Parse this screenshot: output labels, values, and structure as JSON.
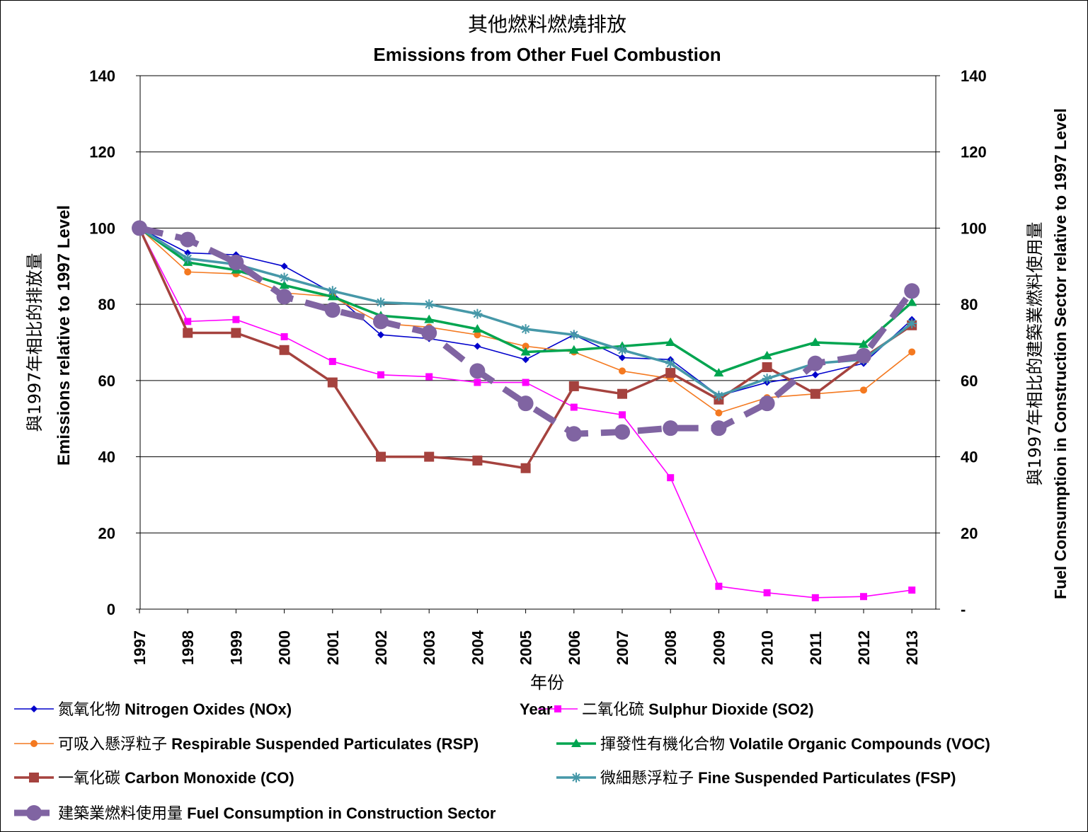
{
  "chart_data": {
    "type": "line",
    "title_cn": "其他燃料燃燒排放",
    "title_en": "Emissions from Other Fuel Combustion",
    "xlabel": "年份",
    "xlabel_en": "Year",
    "ylabel_left_cn": "與1997年相比的排放量",
    "ylabel_left_en": "Emissions relative to 1997 Level",
    "ylabel_right_cn": "與1997年相比的建築業燃料使用量",
    "ylabel_right_en": "Fuel Consumption in Construction Sector relative to 1997 Level",
    "ylim": [
      0,
      140
    ],
    "yticks_left": [
      "0",
      "20",
      "40",
      "60",
      "80",
      "100",
      "120",
      "140"
    ],
    "yticks_right": [
      "-",
      "20",
      "40",
      "60",
      "80",
      "100",
      "120",
      "140"
    ],
    "categories": [
      "1997",
      "1998",
      "1999",
      "2000",
      "2001",
      "2002",
      "2003",
      "2004",
      "2005",
      "2006",
      "2007",
      "2008",
      "2009",
      "2010",
      "2011",
      "2012",
      "2013"
    ],
    "series": [
      {
        "name_cn": "氮氧化物",
        "name_en": "Nitrogen Oxides (NOx)",
        "color": "#0000CC",
        "marker": "diamond",
        "values": [
          100,
          93.5,
          93,
          90,
          83,
          72,
          71,
          69,
          65.5,
          72,
          66,
          65.5,
          56,
          59.5,
          61.5,
          64.5,
          76
        ]
      },
      {
        "name_cn": "二氧化硫",
        "name_en": "Sulphur Dioxide (SO2)",
        "color": "#FF00FF",
        "marker": "square",
        "values": [
          100,
          75.5,
          76,
          71.5,
          65,
          61.5,
          61,
          59.5,
          59.5,
          53,
          51,
          34.5,
          6,
          4.3,
          3,
          3.3,
          5
        ]
      },
      {
        "name_cn": "可吸入懸浮粒子",
        "name_en": "Respirable Suspended Particulates (RSP)",
        "color": "#F47920",
        "marker": "circle",
        "values": [
          100,
          88.5,
          88,
          83,
          82,
          75,
          74,
          72,
          69,
          67.5,
          62.5,
          60.5,
          51.5,
          55.5,
          56.5,
          57.5,
          67.5
        ]
      },
      {
        "name_cn": "揮發性有機化合物",
        "name_en": "Volatile Organic Compounds (VOC)",
        "color": "#00A550",
        "marker": "triangle",
        "values": [
          100,
          91,
          89,
          85,
          82,
          77,
          76,
          73.5,
          67.5,
          68,
          69,
          70,
          62,
          66.5,
          70,
          69.5,
          80.5
        ]
      },
      {
        "name_cn": "一氧化碳",
        "name_en": "Carbon Monoxide (CO)",
        "color": "#A5423E",
        "marker": "bigsquare",
        "values": [
          100,
          72.5,
          72.5,
          68,
          59.5,
          40,
          40,
          39,
          37,
          58.5,
          56.5,
          62,
          55,
          63.5,
          56.5,
          66,
          74.5
        ]
      },
      {
        "name_cn": "微細懸浮粒子",
        "name_en": "Fine Suspended Particulates (FSP)",
        "color": "#4698A8",
        "marker": "star",
        "values": [
          100,
          92,
          90.5,
          87,
          83.5,
          80.5,
          80,
          77.5,
          73.5,
          72,
          68,
          64.5,
          56,
          60.5,
          64.5,
          65.5,
          75
        ]
      },
      {
        "name_cn": "建築業燃料使用量",
        "name_en": "Fuel Consumption in Construction Sector",
        "color": "#8064A2",
        "marker": "bigcircle",
        "dashed": true,
        "values": [
          100,
          97,
          91,
          82,
          78.5,
          75.5,
          72.5,
          62.5,
          54,
          46,
          46.5,
          47.5,
          47.5,
          54,
          64.5,
          66.5,
          83.5
        ]
      }
    ],
    "grid": true,
    "legend_position": "bottom"
  }
}
